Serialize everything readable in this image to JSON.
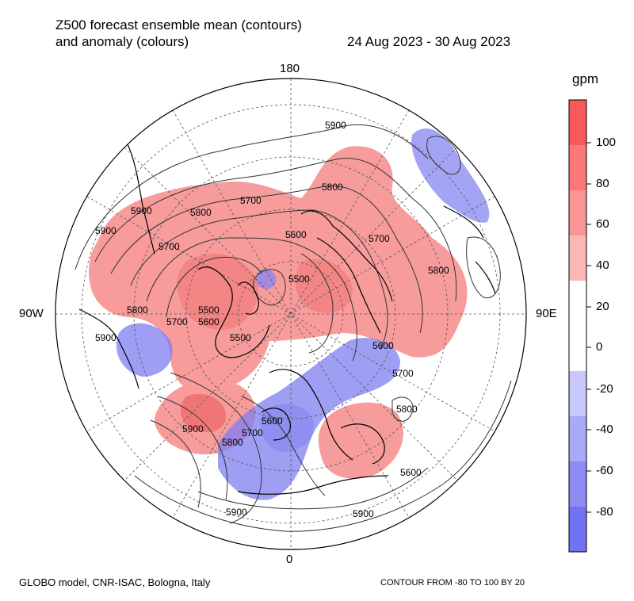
{
  "title_line1": "Z500 forecast ensemble mean (contours)",
  "title_line2": "and anomaly (colours)",
  "date_range": "24 Aug 2023 - 30 Aug 2023",
  "unit": "gpm",
  "longitude_labels": {
    "top": "180",
    "bottom": "0",
    "left": "90W",
    "right": "90E"
  },
  "footer_left": "GLOBO model, CNR-ISAC, Bologna, Italy",
  "footer_right": "CONTOUR FROM -80 TO 100 BY 20",
  "colorbar": {
    "labels": [
      "100",
      "80",
      "60",
      "40",
      "20",
      "0",
      "-20",
      "-40",
      "-60",
      "-80"
    ],
    "colors": [
      "#f85a5a",
      "#fa7878",
      "#fb9595",
      "#fcb7b7",
      "#ffffff",
      "#ffffff",
      "#c8c8fb",
      "#a9a9f8",
      "#8c8cf5",
      "#7272f2"
    ]
  },
  "contour_labels": [
    "5900",
    "5800",
    "5700",
    "5600",
    "5500",
    "5900",
    "5800",
    "5700",
    "5600",
    "5500",
    "5900",
    "5800",
    "5700",
    "5600",
    "5700",
    "5800",
    "5900",
    "5900",
    "5900",
    "5800",
    "5600",
    "5700",
    "5900",
    "5800",
    "5700",
    "5500",
    "5600"
  ],
  "colors": {
    "positive_anomaly": "#f77a7a",
    "negative_anomaly": "#7b7bf0",
    "contour": "#333333",
    "coast": "#000000"
  }
}
